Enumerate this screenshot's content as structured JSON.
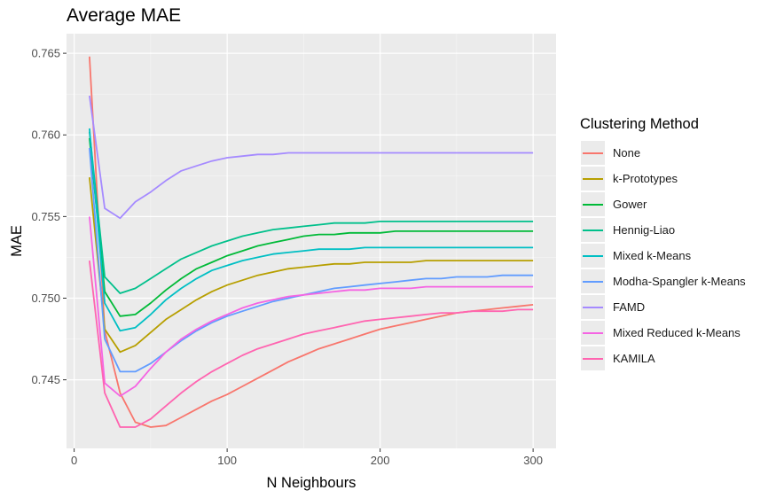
{
  "chart_data": {
    "type": "line",
    "title": "Average MAE",
    "xlabel": "N Neighbours",
    "ylabel": "MAE",
    "xlim": [
      -5,
      315
    ],
    "ylim": [
      0.7408,
      0.7662
    ],
    "x_ticks": [
      0,
      100,
      200,
      300
    ],
    "x_tick_labels": [
      "0",
      "100",
      "200",
      "300"
    ],
    "y_ticks": [
      0.745,
      0.75,
      0.755,
      0.76,
      0.765
    ],
    "y_tick_labels": [
      "0.745",
      "0.750",
      "0.755",
      "0.760",
      "0.765"
    ],
    "grid": true,
    "legend_title": "Clustering Method",
    "legend_position": "right",
    "x": [
      10,
      20,
      30,
      40,
      50,
      60,
      70,
      80,
      90,
      100,
      110,
      120,
      130,
      140,
      150,
      160,
      170,
      180,
      190,
      200,
      210,
      220,
      230,
      240,
      250,
      260,
      270,
      280,
      290,
      300
    ],
    "series": [
      {
        "name": "None",
        "color": "#F8766D",
        "values": [
          0.7648,
          0.748,
          0.7442,
          0.7424,
          0.7421,
          0.7422,
          0.7427,
          0.7432,
          0.7437,
          0.7441,
          0.7446,
          0.7451,
          0.7456,
          0.7461,
          0.7465,
          0.7469,
          0.7472,
          0.7475,
          0.7478,
          0.7481,
          0.7483,
          0.7485,
          0.7487,
          0.7489,
          0.7491,
          0.7492,
          0.7493,
          0.7494,
          0.7495,
          0.7496
        ]
      },
      {
        "name": "k-Prototypes",
        "color": "#B79F00",
        "values": [
          0.7574,
          0.7481,
          0.7467,
          0.7471,
          0.7479,
          0.7487,
          0.7493,
          0.7499,
          0.7504,
          0.7508,
          0.7511,
          0.7514,
          0.7516,
          0.7518,
          0.7519,
          0.752,
          0.7521,
          0.7521,
          0.7522,
          0.7522,
          0.7522,
          0.7522,
          0.7523,
          0.7523,
          0.7523,
          0.7523,
          0.7523,
          0.7523,
          0.7523,
          0.7523
        ]
      },
      {
        "name": "Gower",
        "color": "#00BA38",
        "values": [
          0.7598,
          0.7504,
          0.7489,
          0.749,
          0.7497,
          0.7505,
          0.7512,
          0.7518,
          0.7522,
          0.7526,
          0.7529,
          0.7532,
          0.7534,
          0.7536,
          0.7538,
          0.7539,
          0.7539,
          0.754,
          0.754,
          0.754,
          0.7541,
          0.7541,
          0.7541,
          0.7541,
          0.7541,
          0.7541,
          0.7541,
          0.7541,
          0.7541,
          0.7541
        ]
      },
      {
        "name": "Hennig-Liao",
        "color": "#00C08B",
        "values": [
          0.7602,
          0.7513,
          0.7503,
          0.7506,
          0.7512,
          0.7518,
          0.7524,
          0.7528,
          0.7532,
          0.7535,
          0.7538,
          0.754,
          0.7542,
          0.7543,
          0.7544,
          0.7545,
          0.7546,
          0.7546,
          0.7546,
          0.7547,
          0.7547,
          0.7547,
          0.7547,
          0.7547,
          0.7547,
          0.7547,
          0.7547,
          0.7547,
          0.7547,
          0.7547
        ]
      },
      {
        "name": "Mixed k-Means",
        "color": "#00BFC4",
        "values": [
          0.7604,
          0.7497,
          0.748,
          0.7482,
          0.749,
          0.7499,
          0.7506,
          0.7512,
          0.7517,
          0.752,
          0.7523,
          0.7525,
          0.7527,
          0.7528,
          0.7529,
          0.753,
          0.753,
          0.753,
          0.7531,
          0.7531,
          0.7531,
          0.7531,
          0.7531,
          0.7531,
          0.7531,
          0.7531,
          0.7531,
          0.7531,
          0.7531,
          0.7531
        ]
      },
      {
        "name": "Modha-Spangler k-Means",
        "color": "#619CFF",
        "values": [
          0.7592,
          0.7475,
          0.7455,
          0.7455,
          0.746,
          0.7467,
          0.7474,
          0.748,
          0.7485,
          0.7489,
          0.7492,
          0.7495,
          0.7498,
          0.75,
          0.7502,
          0.7504,
          0.7506,
          0.7507,
          0.7508,
          0.7509,
          0.751,
          0.7511,
          0.7512,
          0.7512,
          0.7513,
          0.7513,
          0.7513,
          0.7514,
          0.7514,
          0.7514
        ]
      },
      {
        "name": "FAMD",
        "color": "#A58AFF",
        "values": [
          0.7624,
          0.7555,
          0.7549,
          0.7559,
          0.7565,
          0.7572,
          0.7578,
          0.7581,
          0.7584,
          0.7586,
          0.7587,
          0.7588,
          0.7588,
          0.7589,
          0.7589,
          0.7589,
          0.7589,
          0.7589,
          0.7589,
          0.7589,
          0.7589,
          0.7589,
          0.7589,
          0.7589,
          0.7589,
          0.7589,
          0.7589,
          0.7589,
          0.7589,
          0.7589
        ]
      },
      {
        "name": "Mixed Reduced k-Means",
        "color": "#F564E3",
        "values": [
          0.755,
          0.7448,
          0.744,
          0.7446,
          0.7457,
          0.7467,
          0.7475,
          0.7481,
          0.7486,
          0.749,
          0.7494,
          0.7497,
          0.7499,
          0.7501,
          0.7502,
          0.7503,
          0.7504,
          0.7505,
          0.7505,
          0.7506,
          0.7506,
          0.7506,
          0.7507,
          0.7507,
          0.7507,
          0.7507,
          0.7507,
          0.7507,
          0.7507,
          0.7507
        ]
      },
      {
        "name": "KAMILA",
        "color": "#FF64B0",
        "values": [
          0.7523,
          0.7442,
          0.7421,
          0.7421,
          0.7426,
          0.7434,
          0.7442,
          0.7449,
          0.7455,
          0.746,
          0.7465,
          0.7469,
          0.7472,
          0.7475,
          0.7478,
          0.748,
          0.7482,
          0.7484,
          0.7486,
          0.7487,
          0.7488,
          0.7489,
          0.749,
          0.7491,
          0.7491,
          0.7492,
          0.7492,
          0.7492,
          0.7493,
          0.7493
        ]
      }
    ]
  }
}
